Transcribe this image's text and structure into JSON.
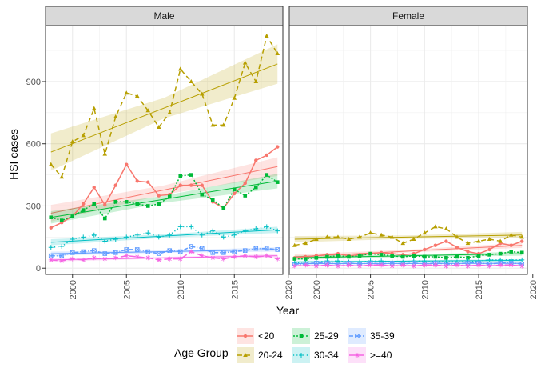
{
  "chart_data": {
    "type": "line",
    "xlabel": "Year",
    "ylabel": "HSI cases",
    "xlim": [
      1997.5,
      2019.5
    ],
    "ylim": [
      -30,
      1170
    ],
    "x_ticks": [
      2000,
      2005,
      2010,
      2015,
      2020
    ],
    "y_ticks": [
      0,
      300,
      600,
      900
    ],
    "grid": true,
    "legend": {
      "title": "Age Group",
      "position": "bottom",
      "items": [
        "<20",
        "20-24",
        "25-29",
        "30-34",
        "35-39",
        ">=40"
      ]
    },
    "colors": {
      "<20": "#F8766D",
      "20-24": "#B79F00",
      "25-29": "#00BA38",
      "30-34": "#00BFC4",
      "35-39": "#619CFF",
      ">=40": "#F564E3"
    },
    "x": [
      1998,
      1999,
      2000,
      2001,
      2002,
      2003,
      2004,
      2005,
      2006,
      2007,
      2008,
      2009,
      2010,
      2011,
      2012,
      2013,
      2014,
      2015,
      2016,
      2017,
      2018,
      2019
    ],
    "panels": [
      {
        "strip": "Male",
        "series": [
          {
            "name": "<20",
            "values": [
              195,
              220,
              250,
              310,
              390,
              305,
              400,
              500,
              420,
              415,
              350,
              355,
              400,
              400,
              400,
              320,
              290,
              360,
              410,
              520,
              545,
              585
            ],
            "fit": [
              265,
              490
            ],
            "ci": [
              40,
              45
            ]
          },
          {
            "name": "20-24",
            "values": [
              500,
              440,
              610,
              640,
              770,
              550,
              730,
              845,
              830,
              760,
              680,
              750,
              960,
              900,
              840,
              690,
              690,
              820,
              990,
              900,
              1120,
              1035
            ],
            "fit": [
              560,
              985
            ],
            "ci": [
              90,
              95
            ]
          },
          {
            "name": "25-29",
            "values": [
              245,
              230,
              250,
              280,
              310,
              240,
              320,
              320,
              310,
              300,
              310,
              345,
              445,
              450,
              355,
              330,
              290,
              380,
              350,
              390,
              450,
              415
            ],
            "fit": [
              245,
              420
            ],
            "ci": [
              30,
              35
            ]
          },
          {
            "name": "30-34",
            "values": [
              100,
              105,
              140,
              150,
              160,
              130,
              140,
              150,
              160,
              170,
              150,
              160,
              200,
              200,
              160,
              180,
              150,
              160,
              180,
              190,
              200,
              180
            ],
            "fit": [
              125,
              185
            ],
            "ci": [
              15,
              15
            ]
          },
          {
            "name": "35-39",
            "values": [
              60,
              60,
              75,
              80,
              85,
              70,
              75,
              90,
              90,
              80,
              70,
              85,
              80,
              105,
              95,
              75,
              75,
              80,
              85,
              95,
              95,
              90
            ],
            "fit": [
              70,
              90
            ],
            "ci": [
              10,
              10
            ]
          },
          {
            "name": ">=40",
            "values": [
              40,
              35,
              45,
              40,
              50,
              45,
              50,
              60,
              55,
              50,
              40,
              45,
              45,
              80,
              60,
              50,
              45,
              55,
              60,
              55,
              60,
              45
            ],
            "fit": [
              40,
              60
            ],
            "ci": [
              8,
              8
            ]
          }
        ]
      },
      {
        "strip": "Female",
        "series": [
          {
            "name": "<20",
            "values": [
              50,
              55,
              60,
              65,
              70,
              60,
              65,
              70,
              75,
              70,
              65,
              70,
              90,
              110,
              130,
              100,
              80,
              70,
              90,
              120,
              110,
              130
            ],
            "fit": [
              55,
              110
            ],
            "ci": [
              12,
              12
            ]
          },
          {
            "name": "20-24",
            "values": [
              110,
              120,
              140,
              150,
              150,
              140,
              150,
              170,
              160,
              150,
              120,
              140,
              170,
              200,
              190,
              150,
              120,
              130,
              140,
              130,
              160,
              150
            ],
            "fit": [
              140,
              160
            ],
            "ci": [
              15,
              15
            ]
          },
          {
            "name": "25-29",
            "values": [
              45,
              45,
              50,
              55,
              60,
              55,
              60,
              70,
              65,
              60,
              55,
              60,
              55,
              55,
              50,
              55,
              50,
              60,
              65,
              70,
              80,
              75
            ],
            "fit": [
              50,
              70
            ],
            "ci": [
              10,
              10
            ]
          },
          {
            "name": "30-34",
            "values": [
              25,
              30,
              30,
              35,
              35,
              30,
              30,
              35,
              35,
              30,
              30,
              35,
              35,
              30,
              30,
              30,
              35,
              35,
              40,
              40,
              40,
              40
            ],
            "fit": [
              30,
              38
            ],
            "ci": [
              6,
              6
            ]
          },
          {
            "name": "35-39",
            "values": [
              20,
              20,
              25,
              25,
              20,
              25,
              20,
              25,
              20,
              25,
              20,
              25,
              20,
              25,
              20,
              20,
              25,
              25,
              20,
              25,
              25,
              20
            ],
            "fit": [
              22,
              23
            ],
            "ci": [
              5,
              5
            ]
          },
          {
            "name": ">=40",
            "values": [
              10,
              15,
              10,
              15,
              10,
              15,
              10,
              15,
              15,
              10,
              15,
              10,
              15,
              15,
              10,
              15,
              10,
              15,
              10,
              15,
              15,
              10
            ],
            "fit": [
              12,
              13
            ],
            "ci": [
              4,
              4
            ]
          }
        ]
      }
    ]
  }
}
